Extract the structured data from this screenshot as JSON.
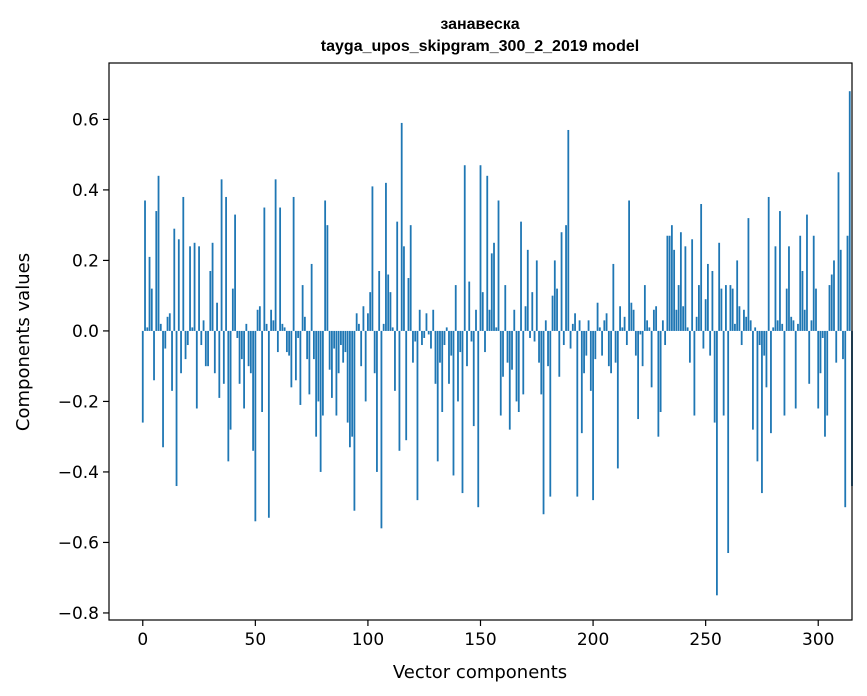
{
  "chart_data": {
    "type": "bar",
    "title": "занавеска",
    "subtitle": "tayga_upos_skipgram_300_2_2019 model",
    "xlabel": "Vector components",
    "ylabel": "Components values",
    "xlim": [
      -15,
      315
    ],
    "ylim": [
      -0.82,
      0.76
    ],
    "xticks": [
      0,
      50,
      100,
      150,
      200,
      250,
      300
    ],
    "xtick_labels": [
      "0",
      "50",
      "100",
      "150",
      "200",
      "250",
      "300"
    ],
    "yticks": [
      -0.8,
      -0.6,
      -0.4,
      -0.2,
      0.0,
      0.2,
      0.4,
      0.6
    ],
    "ytick_labels": [
      "−0.8",
      "−0.6",
      "−0.4",
      "−0.2",
      "0.0",
      "0.2",
      "0.4",
      "0.6"
    ],
    "bar_color": "#1f77b4",
    "grid": false,
    "x_start": 0,
    "values": [
      -0.26,
      0.37,
      0.01,
      0.21,
      0.12,
      -0.14,
      0.34,
      0.44,
      0.02,
      -0.33,
      -0.05,
      0.04,
      0.05,
      -0.17,
      0.29,
      -0.44,
      0.26,
      -0.12,
      0.38,
      -0.08,
      -0.04,
      0.24,
      0.01,
      0.25,
      -0.22,
      0.24,
      -0.04,
      0.03,
      -0.1,
      -0.1,
      0.17,
      0.25,
      -0.12,
      0.08,
      -0.19,
      0.43,
      -0.15,
      0.38,
      -0.37,
      -0.28,
      0.12,
      0.33,
      -0.02,
      -0.15,
      -0.08,
      -0.22,
      0.02,
      -0.1,
      -0.12,
      -0.34,
      -0.54,
      0.06,
      0.07,
      -0.23,
      0.35,
      0.02,
      -0.53,
      0.06,
      0.03,
      0.43,
      -0.06,
      0.35,
      0.02,
      0.01,
      -0.06,
      -0.07,
      -0.16,
      0.38,
      -0.14,
      -0.02,
      -0.21,
      0.13,
      0.04,
      -0.08,
      -0.18,
      0.19,
      -0.08,
      -0.3,
      -0.2,
      -0.4,
      -0.24,
      0.37,
      0.3,
      -0.11,
      -0.19,
      -0.05,
      -0.24,
      -0.12,
      -0.04,
      -0.09,
      -0.06,
      -0.26,
      -0.33,
      -0.3,
      -0.51,
      0.05,
      0.02,
      -0.1,
      0.07,
      -0.2,
      0.05,
      0.11,
      0.41,
      -0.12,
      -0.4,
      0.17,
      -0.56,
      0.02,
      0.42,
      0.16,
      0.11,
      0.01,
      -0.17,
      0.31,
      -0.34,
      0.59,
      0.24,
      -0.31,
      0.15,
      0.3,
      -0.09,
      -0.03,
      -0.48,
      0.06,
      -0.04,
      -0.02,
      0.05,
      -0.01,
      -0.05,
      0.06,
      -0.15,
      -0.37,
      -0.09,
      -0.23,
      -0.04,
      0.01,
      -0.15,
      -0.07,
      -0.41,
      0.13,
      -0.2,
      -0.06,
      -0.46,
      0.47,
      -0.1,
      0.14,
      -0.03,
      -0.27,
      0.06,
      -0.5,
      0.47,
      0.11,
      -0.06,
      0.44,
      0.06,
      0.22,
      0.25,
      0.01,
      0.37,
      -0.24,
      -0.13,
      0.13,
      -0.09,
      -0.28,
      -0.11,
      0.06,
      -0.2,
      -0.23,
      0.31,
      -0.18,
      0.07,
      0.23,
      -0.02,
      0.11,
      -0.03,
      0.2,
      -0.09,
      -0.18,
      -0.52,
      0.03,
      -0.1,
      -0.47,
      0.1,
      0.2,
      0.12,
      -0.13,
      0.28,
      -0.04,
      0.3,
      0.57,
      -0.05,
      0.02,
      0.05,
      -0.47,
      0.03,
      -0.29,
      -0.12,
      -0.07,
      0.03,
      -0.17,
      -0.48,
      -0.08,
      0.08,
      0.01,
      -0.07,
      0.03,
      0.05,
      -0.1,
      -0.12,
      0.19,
      -0.09,
      -0.39,
      0.07,
      0.01,
      0.04,
      -0.04,
      0.37,
      0.08,
      0.06,
      -0.07,
      -0.25,
      -0.01,
      -0.1,
      0.13,
      0.03,
      0.01,
      -0.16,
      0.06,
      0.07,
      -0.3,
      -0.23,
      0.03,
      -0.04,
      0.27,
      0.27,
      0.3,
      0.23,
      0.06,
      0.13,
      0.28,
      0.07,
      0.24,
      0.01,
      -0.09,
      0.26,
      -0.24,
      0.04,
      0.13,
      0.36,
      -0.05,
      0.09,
      0.19,
      -0.07,
      0.17,
      -0.26,
      -0.75,
      0.25,
      0.12,
      -0.24,
      0.13,
      -0.63,
      0.13,
      0.12,
      0.02,
      0.2,
      0.07,
      -0.04,
      0.06,
      0.04,
      0.32,
      0.03,
      -0.28,
      0.01,
      -0.37,
      -0.04,
      -0.46,
      -0.07,
      -0.16,
      0.38,
      -0.29,
      0.01,
      0.24,
      0.03,
      0.34,
      0.02,
      -0.24,
      0.12,
      0.24,
      0.04,
      0.03,
      -0.22,
      0.02,
      0.27,
      0.17,
      0.06,
      0.33,
      -0.15,
      0.03,
      0.27,
      0.12,
      -0.22,
      -0.12,
      -0.02,
      -0.3,
      -0.24,
      0.13,
      0.16,
      0.2,
      -0.09,
      0.45,
      0.23,
      -0.08,
      -0.5,
      0.27,
      0.68,
      -0.44
    ]
  }
}
